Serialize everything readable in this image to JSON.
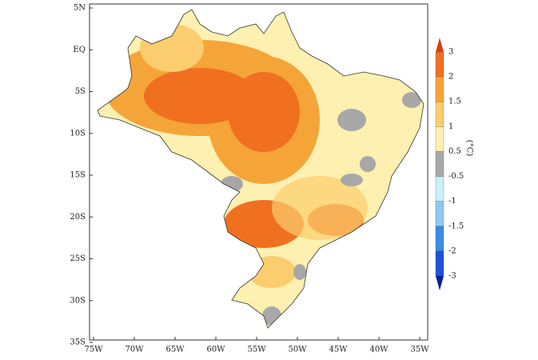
{
  "map": {
    "lon_ticks": [
      "75W",
      "70W",
      "65W",
      "60W",
      "55W",
      "50W",
      "45W",
      "40W",
      "35W"
    ],
    "lat_ticks": [
      "5N",
      "EQ",
      "5S",
      "10S",
      "15S",
      "20S",
      "25S",
      "30S",
      "35S"
    ]
  },
  "colorbar": {
    "unit": "(°C)",
    "labels": [
      3,
      2,
      1.5,
      1,
      0.5,
      -0.5,
      -1,
      -1.5,
      -2,
      -3
    ],
    "colors": [
      "#d8400c",
      "#f07020",
      "#f5a438",
      "#fbcd6e",
      "#fdf0b0",
      "#a8a8a8",
      "#c8f0f8",
      "#8ccaf0",
      "#3c8ce8",
      "#1e50d8",
      "#0a1e9a"
    ]
  }
}
